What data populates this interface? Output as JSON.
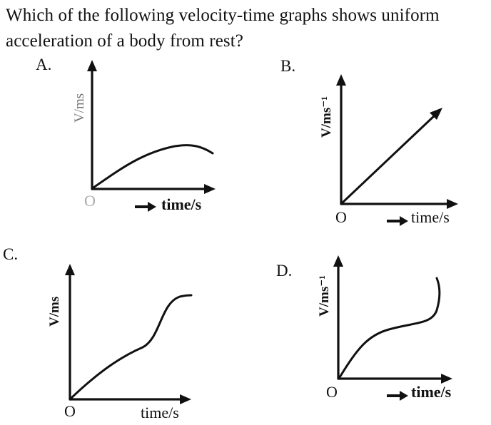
{
  "question": {
    "text": "Which of the following velocity-time graphs shows uniform acceleration of a body from rest?"
  },
  "options": [
    {
      "id": "A",
      "label": "A.",
      "y_axis_label": "V/ms",
      "origin_label": "O",
      "x_axis_label": "time/s"
    },
    {
      "id": "B",
      "label": "B.",
      "y_axis_label": "V/ms⁻¹",
      "origin_label": "O",
      "x_axis_label": "time/s"
    },
    {
      "id": "C",
      "label": "C.",
      "y_axis_label": "V/ms",
      "origin_label": "O",
      "x_axis_label": "time/s"
    },
    {
      "id": "D",
      "label": "D.",
      "y_axis_label": "V/ms⁻¹",
      "origin_label": "O",
      "x_axis_label": "time/s"
    }
  ]
}
